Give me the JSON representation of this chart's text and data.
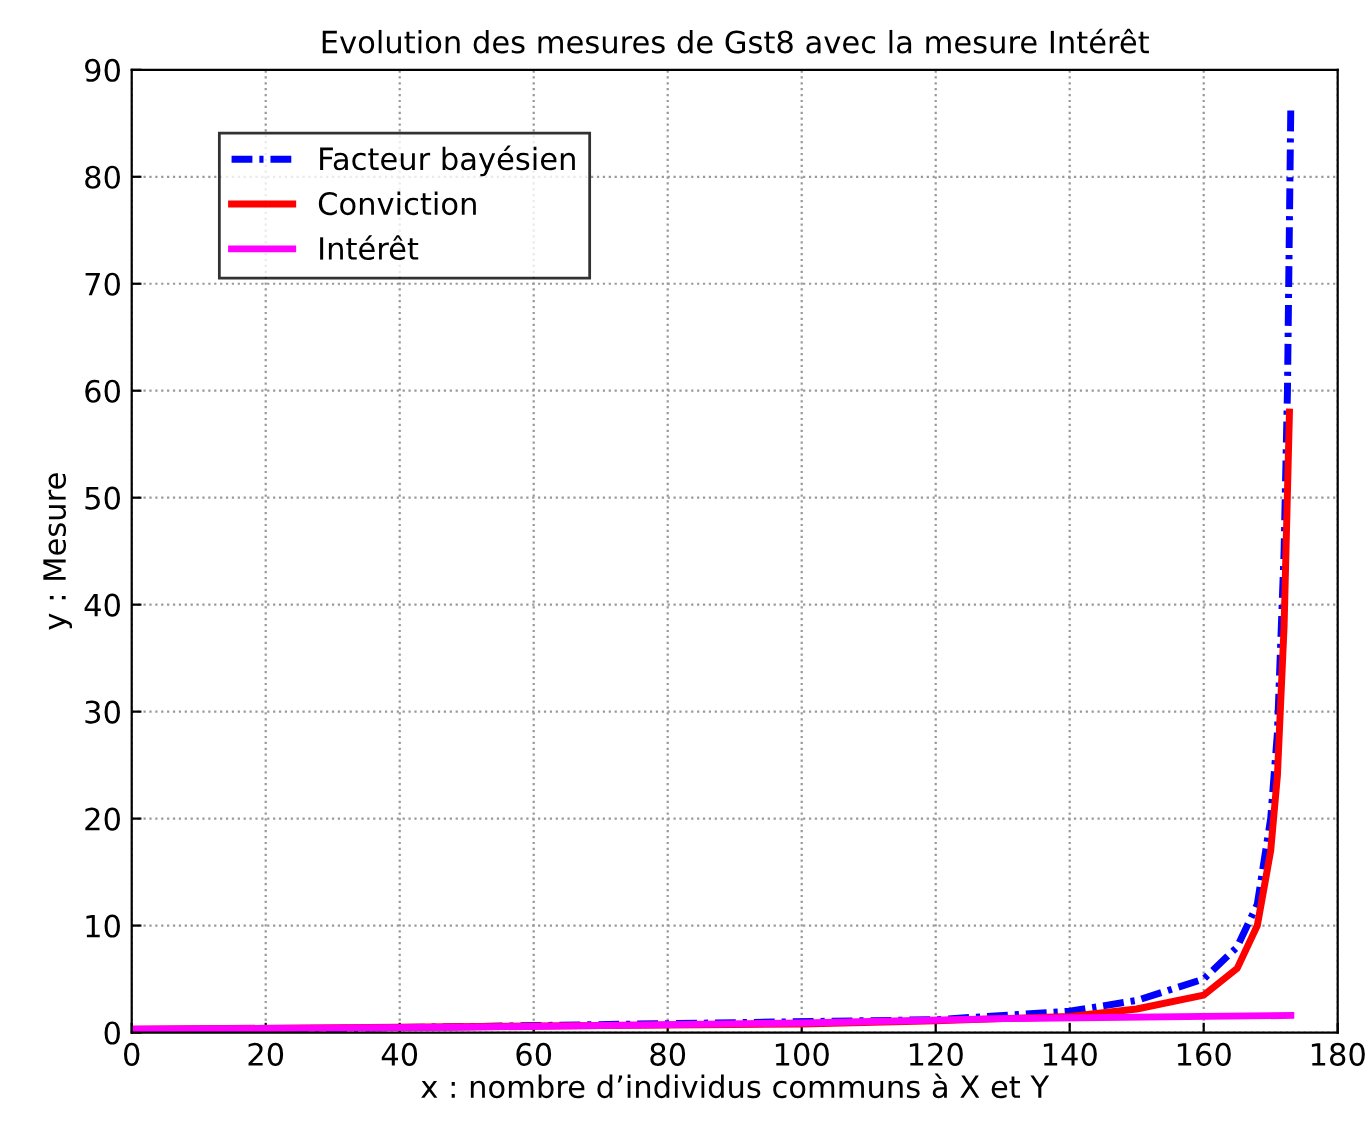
{
  "chart_data": {
    "type": "line",
    "title": "Evolution des mesures de Gst8 avec la mesure Intérêt",
    "xlabel": "x : nombre d’individus communs à X et Y",
    "ylabel": "y : Mesure",
    "xlim": [
      0,
      180
    ],
    "ylim": [
      0,
      90
    ],
    "xticks": [
      0,
      20,
      40,
      60,
      80,
      100,
      120,
      140,
      160,
      180
    ],
    "yticks": [
      0,
      10,
      20,
      30,
      40,
      50,
      60,
      70,
      80,
      90
    ],
    "grid": true,
    "legend": "top left",
    "series": [
      {
        "name": "Facteur bayésien",
        "color": "#0000ff",
        "line_style": "dashdot",
        "x": [
          0,
          120,
          140,
          150,
          160,
          165,
          168,
          170,
          171,
          172,
          172.5,
          173
        ],
        "values": [
          0.1,
          1.2,
          2,
          3,
          5,
          8,
          12,
          20,
          28,
          45,
          60,
          86.5
        ]
      },
      {
        "name": "Conviction",
        "color": "#ff0000",
        "line_style": "solid",
        "x": [
          0,
          100,
          120,
          140,
          150,
          160,
          165,
          168,
          170,
          171,
          172,
          172.8
        ],
        "values": [
          0.3,
          0.8,
          1.1,
          1.5,
          2.2,
          3.5,
          6,
          10,
          17,
          24,
          38,
          58
        ]
      },
      {
        "name": "Intérêt",
        "color": "#ff00ff",
        "line_style": "solid",
        "x": [
          0,
          50,
          100,
          130,
          173
        ],
        "values": [
          0.3,
          0.5,
          0.9,
          1.3,
          1.6
        ]
      }
    ]
  }
}
